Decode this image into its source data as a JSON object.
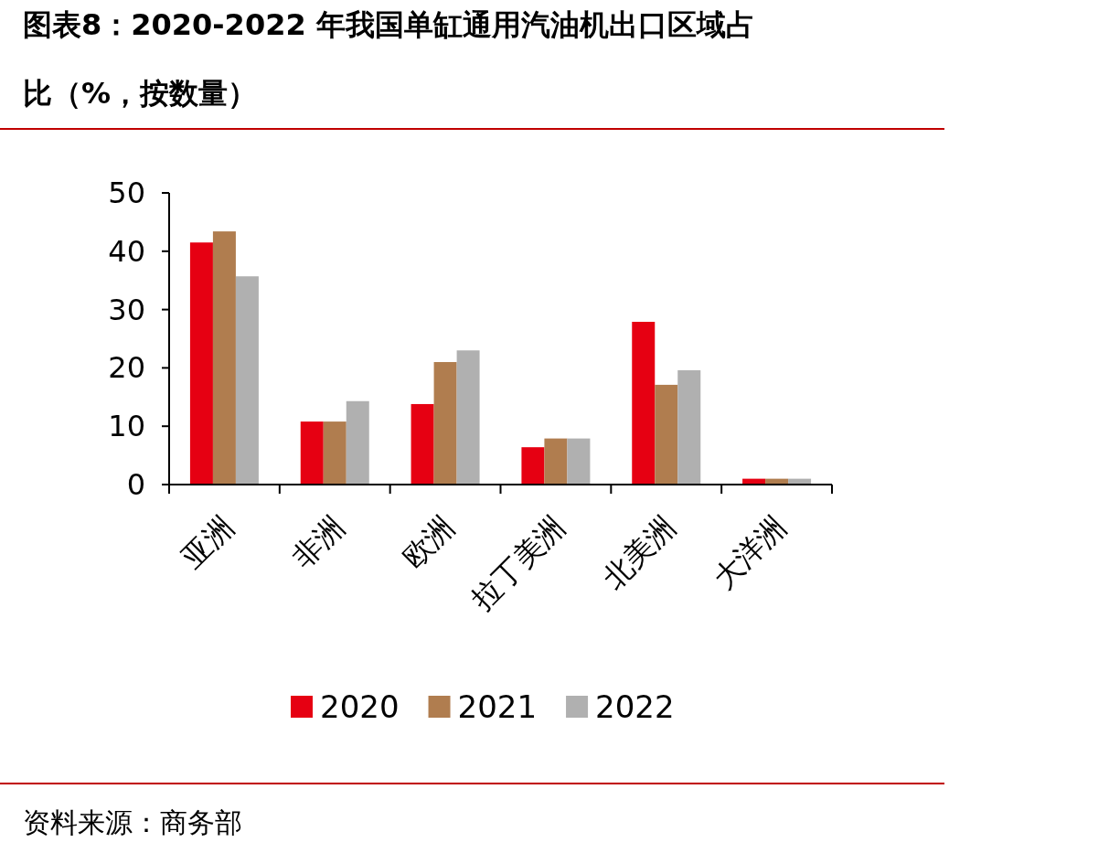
{
  "chart_data": {
    "type": "bar",
    "title": "图表8：2020-2022 年我国单缸通用汽油机出口区域占比（%，按数量）",
    "annotations": [
      "资料来源：商务部"
    ],
    "categories": [
      "亚洲",
      "非洲",
      "欧洲",
      "拉丁美洲",
      "北美洲",
      "大洋洲"
    ],
    "series": [
      {
        "name": "2020",
        "color": "#e60012",
        "values": [
          41.5,
          10.8,
          13.8,
          6.4,
          27.9,
          1.0
        ]
      },
      {
        "name": "2021",
        "color": "#b07d4f",
        "values": [
          43.4,
          10.8,
          21.0,
          7.9,
          17.1,
          1.0
        ]
      },
      {
        "name": "2022",
        "color": "#b0b0b0",
        "values": [
          35.7,
          14.3,
          23.0,
          7.9,
          19.6,
          1.0
        ]
      }
    ],
    "ylim": [
      0,
      50
    ],
    "yticks": [
      0,
      10,
      20,
      30,
      40,
      50
    ],
    "legend": "bottom"
  }
}
